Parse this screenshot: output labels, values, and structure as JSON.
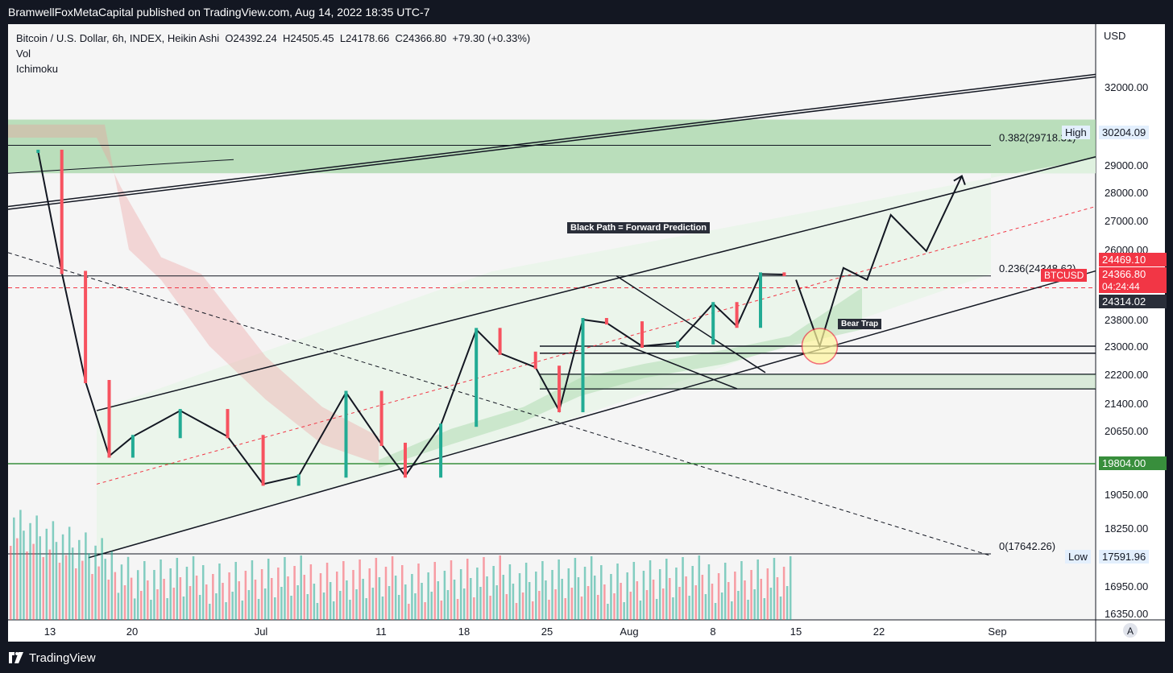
{
  "header": {
    "publisher": "BramwellFoxMetaCapital published on TradingView.com, Aug 14, 2022 18:35 UTC-7"
  },
  "legend": {
    "symbol": "Bitcoin / U.S. Dollar, 6h, INDEX, Heikin Ashi",
    "open": "O24392.24",
    "high": "H24505.45",
    "low": "L24178.66",
    "close": "C24366.80",
    "change": "+79.30 (+0.33%)",
    "indicator_vol": "Vol",
    "indicator_ichimoku": "Ichimoku"
  },
  "footer": {
    "brand": "TradingView"
  },
  "axis": {
    "currency": "USD",
    "auto_button": "A"
  },
  "annotations": {
    "forward_prediction": "Black Path = Forward Prediction",
    "bear_trap": "Bear Trap"
  },
  "price_tags": {
    "high_label": "High",
    "high_value": "30204.09",
    "btcusd_label": "BTCUSD",
    "tag1": "24469.10",
    "tag2": "24366.80",
    "countdown": "04:24:44",
    "tag3": "24314.02",
    "green_tag": "19804.00",
    "low_label": "Low",
    "low_value": "17591.96"
  },
  "colors": {
    "accent_green": "#388e3c",
    "accent_red": "#f23645",
    "zone_green": "#a5d6a7",
    "channel_fill": "#e8f5e9",
    "candle_up": "#22ab94",
    "candle_down": "#f7525f"
  },
  "chart_data": {
    "type": "line",
    "ylabel": "USD",
    "y_ticks": [
      "32000.00",
      "29000.00",
      "28000.00",
      "27000.00",
      "26000.00",
      "23800.00",
      "23000.00",
      "22200.00",
      "21400.00",
      "20650.00",
      "19050.00",
      "18250.00",
      "16950.00",
      "16350.00"
    ],
    "x_ticks": [
      "13",
      "20",
      "Jul",
      "11",
      "18",
      "25",
      "Aug",
      "8",
      "15",
      "22",
      "Sep"
    ],
    "fib_levels": [
      {
        "label": "0.382(29718.31)",
        "value": 29718.31
      },
      {
        "label": "0.236(24348.62)",
        "value": 24348.62
      },
      {
        "label": "0(17642.26)",
        "value": 17642.26
      }
    ],
    "horizontal_levels": [
      19804.0,
      23000.0,
      22200.0,
      21800.0
    ],
    "series": [
      {
        "name": "Heikin Ashi close",
        "x": [
          "2022-06-12",
          "2022-06-14",
          "2022-06-16",
          "2022-06-18",
          "2022-06-20",
          "2022-06-24",
          "2022-06-28",
          "2022-07-01",
          "2022-07-04",
          "2022-07-08",
          "2022-07-11",
          "2022-07-13",
          "2022-07-16",
          "2022-07-19",
          "2022-07-21",
          "2022-07-24",
          "2022-07-26",
          "2022-07-28",
          "2022-07-30",
          "2022-08-02",
          "2022-08-05",
          "2022-08-08",
          "2022-08-10",
          "2022-08-12",
          "2022-08-14"
        ],
        "values": [
          29500,
          24500,
          22000,
          20000,
          20500,
          21200,
          20500,
          19300,
          19500,
          21700,
          20300,
          19500,
          20800,
          23500,
          22800,
          22400,
          21200,
          23800,
          23700,
          23000,
          23100,
          24000,
          23600,
          24400,
          24366.8
        ]
      },
      {
        "name": "Forward prediction",
        "x": [
          "2022-08-15",
          "2022-08-17",
          "2022-08-19",
          "2022-08-21",
          "2022-08-23",
          "2022-08-26",
          "2022-08-29"
        ],
        "values": [
          24300,
          23000,
          24800,
          24300,
          27200,
          25900,
          28600
        ]
      }
    ],
    "volume": {
      "x_start": "2022-06-12",
      "x_end": "2022-08-14"
    }
  }
}
